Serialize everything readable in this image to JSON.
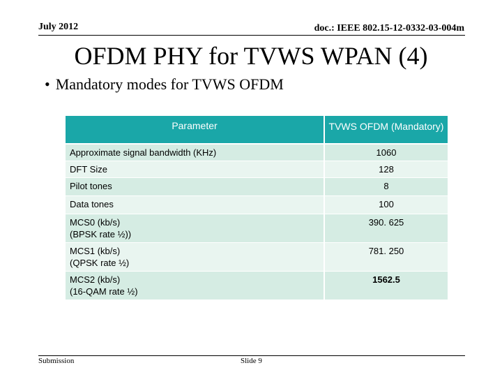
{
  "header": {
    "date": "July 2012",
    "doc_id": "doc.: IEEE 802.15-12-0332-03-004m"
  },
  "title": "OFDM PHY for TVWS WPAN (4)",
  "bullet": {
    "symbol": "•",
    "text": "Mandatory modes for TVWS OFDM"
  },
  "table": {
    "headers": [
      "Parameter",
      "TVWS OFDM (Mandatory)"
    ],
    "rows": [
      {
        "param": "Approximate  signal bandwidth (KHz)",
        "value": "1060"
      },
      {
        "param": "DFT Size",
        "value": "128"
      },
      {
        "param": "Pilot tones",
        "value": "8"
      },
      {
        "param": "Data tones",
        "value": "100"
      },
      {
        "param_line1": "MCS0 (kb/s)",
        "param_line2": "(BPSK rate ½))",
        "value": "390. 625"
      },
      {
        "param_line1": "MCS1 (kb/s)",
        "param_line2": "(QPSK rate ½)",
        "value": "781. 250"
      },
      {
        "param_line1": "MCS2 (kb/s)",
        "param_line2": "(16-QAM rate ½)",
        "value": "1562.5"
      }
    ]
  },
  "footer": {
    "left": "Submission",
    "center": "Slide 9"
  },
  "colors": {
    "header_fill": "#1aa7a8",
    "row_shaded": "#d5ece3",
    "row_light": "#e9f5f0"
  }
}
